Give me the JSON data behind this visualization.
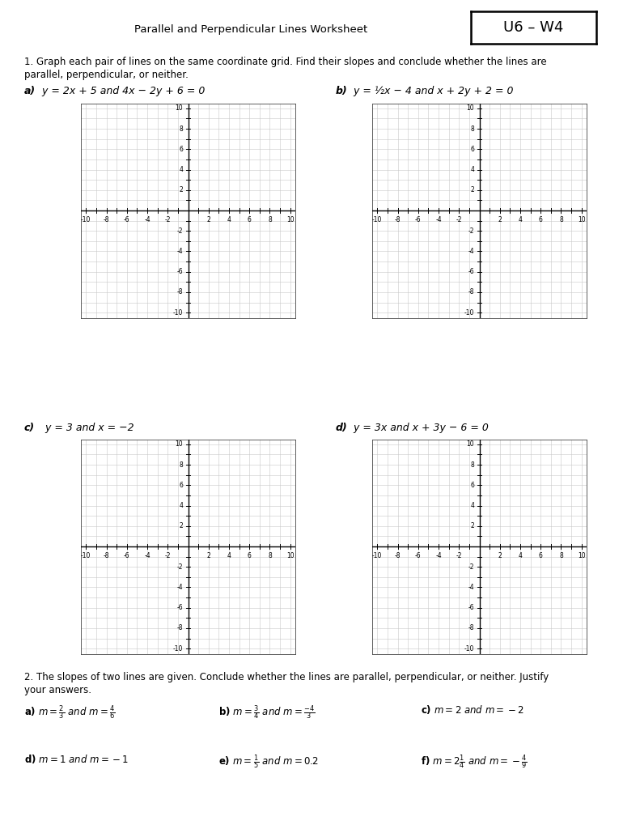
{
  "title": "Parallel and Perpendicular Lines Worksheet",
  "badge": "U6 – W4",
  "section1_line1": "1. Graph each pair of lines on the same coordinate grid. Find their slopes and conclude whether the lines are",
  "section1_line2": "parallel, perpendicular, or neither.",
  "section2_line1": "2. The slopes of two lines are given. Conclude whether the lines are parallel, perpendicular, or neither. Justify",
  "section2_line2": "your answers.",
  "graph_labels": [
    {
      "bold": "a)",
      "italic": " y = 2x + 5 and 4x − 2y + 6 = 0"
    },
    {
      "bold": "b)",
      "italic": " y = ½x − 4 and x + 2y + 2 = 0"
    },
    {
      "bold": "c)",
      "italic": "  y = 3 and x = −2"
    },
    {
      "bold": "d)",
      "italic": " y = 3x and x + 3y − 6 = 0"
    }
  ],
  "bg_color": "#ffffff",
  "grid_color": "#cccccc",
  "axis_line_color": "#000000"
}
